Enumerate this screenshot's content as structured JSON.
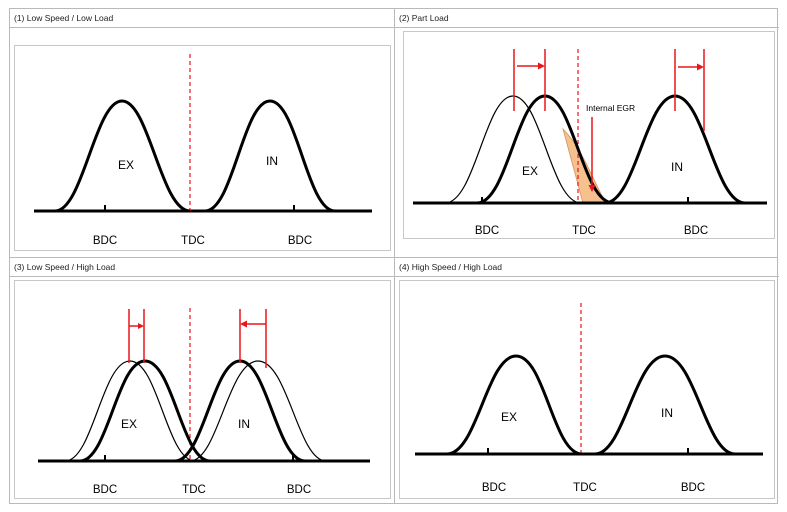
{
  "panels": [
    {
      "title": "(1) Low Speed / Low Load",
      "ex": "EX",
      "in": "IN",
      "bdc_left": "BDC",
      "tdc": "TDC",
      "bdc_right": "BDC"
    },
    {
      "title": "(2) Part Load",
      "ex": "EX",
      "in": "IN",
      "bdc_left": "BDC",
      "tdc": "TDC",
      "bdc_right": "BDC",
      "annotation": "Internal EGR"
    },
    {
      "title": "(3) Low Speed / High Load",
      "ex": "EX",
      "in": "IN",
      "bdc_left": "BDC",
      "tdc": "TDC",
      "bdc_right": "BDC"
    },
    {
      "title": "(4) High Speed / High Load",
      "ex": "EX",
      "in": "IN",
      "bdc_left": "BDC",
      "tdc": "TDC",
      "bdc_right": "BDC"
    }
  ],
  "colors": {
    "marker": "#e8161b",
    "egr_fill": "#f6c08f",
    "curve": "#000000"
  }
}
